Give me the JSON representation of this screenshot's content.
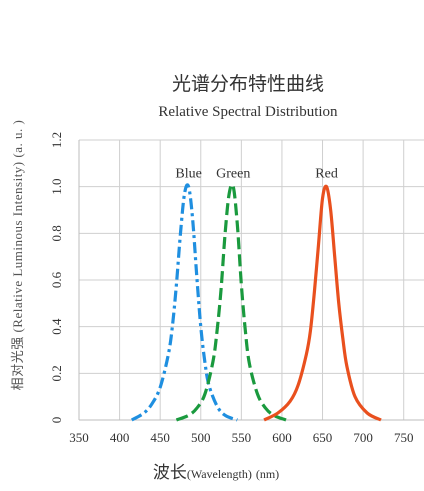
{
  "chart_data": {
    "type": "line",
    "title": "光谱分布特性曲线",
    "subtitle": "Relative Spectral Distribution",
    "ylabel": "相对光强 (Relative Luminous Intensity) (a. u. )",
    "xlabel_cn": "波长",
    "xlabel_en": "(Wavelength)",
    "xlabel_unit": "(nm)",
    "xlim": [
      350,
      775
    ],
    "ylim": [
      0,
      1.2
    ],
    "xticks": [
      350,
      400,
      450,
      500,
      550,
      600,
      650,
      700,
      750
    ],
    "yticks": [
      0,
      0.2,
      0.4,
      0.6,
      0.8,
      1.0,
      1.2
    ],
    "xtick_labels": [
      "350",
      "400",
      "450",
      "500",
      "550",
      "600",
      "650",
      "700",
      "750"
    ],
    "ytick_labels": [
      "0",
      "0.2",
      "0.4",
      "0.6",
      "0.8",
      "1.0",
      "1.2"
    ],
    "grid": true,
    "series": [
      {
        "name": "Blue",
        "color": "#1f8fe0",
        "style": "dash-dot",
        "x": [
          415,
          430,
          440,
          450,
          460,
          465,
          470,
          475,
          480,
          485,
          490,
          495,
          500,
          505,
          510,
          520,
          530,
          545
        ],
        "y": [
          0.0,
          0.03,
          0.07,
          0.14,
          0.28,
          0.4,
          0.58,
          0.8,
          0.97,
          1.0,
          0.86,
          0.62,
          0.4,
          0.25,
          0.15,
          0.06,
          0.02,
          0.0
        ]
      },
      {
        "name": "Green",
        "color": "#1a9a3e",
        "style": "dashed",
        "x": [
          470,
          485,
          495,
          505,
          515,
          520,
          525,
          530,
          535,
          540,
          545,
          550,
          555,
          560,
          570,
          580,
          590,
          605
        ],
        "y": [
          0.0,
          0.02,
          0.05,
          0.11,
          0.25,
          0.38,
          0.56,
          0.8,
          0.97,
          1.0,
          0.84,
          0.58,
          0.38,
          0.24,
          0.11,
          0.05,
          0.02,
          0.0
        ]
      },
      {
        "name": "Red",
        "color": "#e9501e",
        "style": "solid",
        "x": [
          578,
          595,
          610,
          620,
          630,
          635,
          640,
          645,
          650,
          655,
          660,
          665,
          670,
          675,
          680,
          690,
          705,
          722
        ],
        "y": [
          0.0,
          0.03,
          0.08,
          0.15,
          0.28,
          0.38,
          0.55,
          0.75,
          0.95,
          1.0,
          0.9,
          0.7,
          0.5,
          0.35,
          0.23,
          0.1,
          0.03,
          0.0
        ]
      }
    ]
  }
}
